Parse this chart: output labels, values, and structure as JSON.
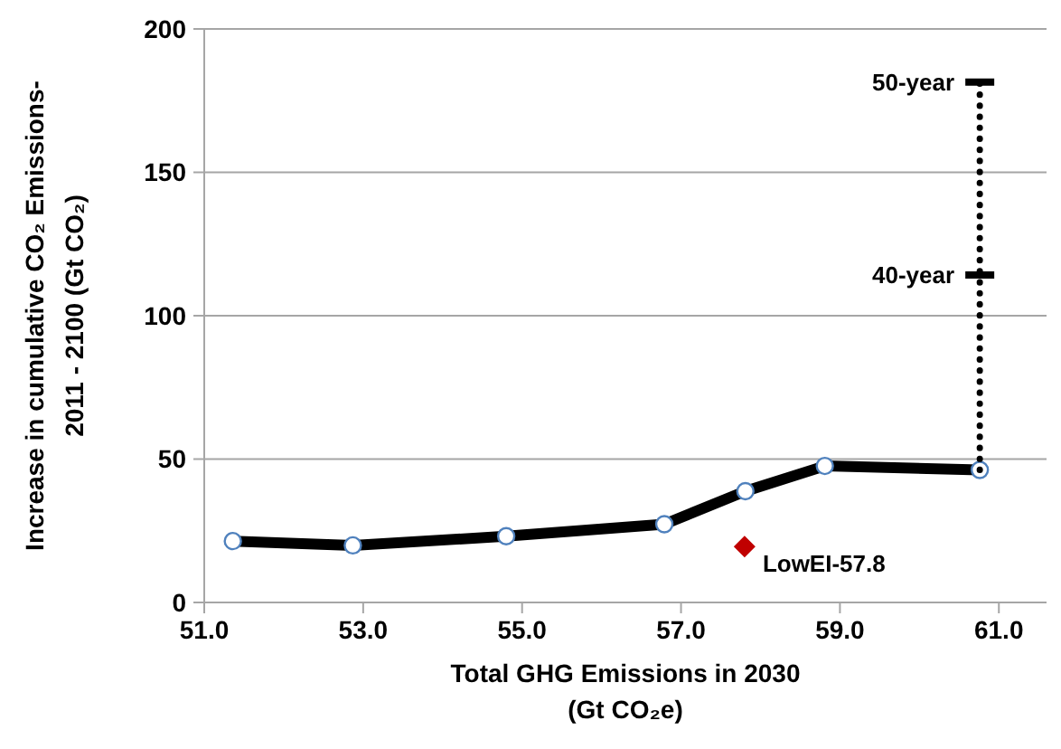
{
  "chart_data": {
    "type": "line",
    "xlabel": "Total GHG Emissions in 2030\n(Gt CO₂e)",
    "ylabel": "Increase in cumulative CO₂ Emissions-\n2011 - 2100  (Gt CO₂)",
    "xlim": [
      51,
      61.6
    ],
    "xticks": [
      {
        "value": 51,
        "label": "51.0"
      },
      {
        "value": 53,
        "label": "53.0"
      },
      {
        "value": 55,
        "label": "55.0"
      },
      {
        "value": 57,
        "label": "57.0"
      },
      {
        "value": 59,
        "label": "59.0"
      },
      {
        "value": 61,
        "label": "61.0"
      }
    ],
    "ylim": [
      0,
      200
    ],
    "yticks": [
      0,
      50,
      100,
      150,
      200
    ],
    "grid": "y",
    "series": [
      {
        "color": "#000000",
        "marker": "circle",
        "x": [
          51.36,
          52.87,
          54.8,
          56.79,
          57.81,
          58.81,
          60.76
        ],
        "values": [
          21.4,
          19.9,
          23.1,
          27.3,
          38.8,
          47.6,
          46.2
        ]
      },
      {
        "type": "scatter",
        "name": "LowEI-57.8",
        "color": "#c00000",
        "marker": "diamond",
        "x": [
          57.8
        ],
        "values": [
          19.5
        ]
      },
      {
        "color": "#000000",
        "marker": "none",
        "line_style": "dotted",
        "x": [
          60.76,
          60.76
        ],
        "values": [
          46.2,
          181.5
        ]
      }
    ],
    "annotations": [
      {
        "text": "50-year",
        "x": 60.76,
        "y": 181.5
      },
      {
        "text": "40-year",
        "x": 60.76,
        "y": 114.2
      }
    ]
  }
}
